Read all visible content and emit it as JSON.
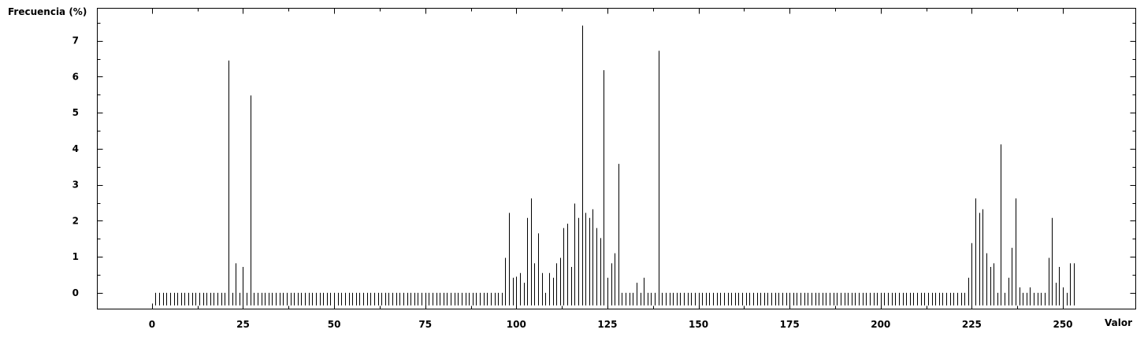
{
  "chart_data": {
    "type": "bar",
    "title": "",
    "xlabel": "Valor",
    "ylabel": "Frecuencia (%)",
    "xlim": [
      -15,
      270
    ],
    "ylim": [
      -0.45,
      7.9
    ],
    "xticks": [
      0,
      25,
      50,
      75,
      100,
      125,
      150,
      175,
      200,
      225,
      250
    ],
    "yticks": [
      0,
      1,
      2,
      3,
      4,
      5,
      6,
      7
    ],
    "grid": false,
    "legend": "none",
    "series": [
      {
        "values": [
          -0.35,
          0,
          0,
          0,
          0,
          0,
          0,
          0,
          0,
          0,
          0,
          0,
          0,
          0,
          0,
          0,
          0,
          0,
          0,
          0,
          0,
          6.45,
          0,
          0.82,
          0,
          0.72,
          0,
          5.48,
          0,
          0,
          0,
          0,
          0,
          0,
          0,
          0,
          0,
          0,
          0,
          0,
          0,
          0,
          0,
          0,
          0,
          0,
          0,
          0,
          0,
          0,
          0,
          0,
          0,
          0,
          0,
          0,
          0,
          0,
          0,
          0,
          0,
          0,
          0,
          0,
          0,
          0,
          0,
          0,
          0,
          0,
          0,
          0,
          0,
          0,
          0,
          0,
          0,
          0,
          0,
          0,
          0,
          0,
          0,
          0,
          0,
          0,
          0,
          0,
          0,
          0,
          0,
          0,
          0,
          0,
          0,
          0,
          0,
          0.97,
          2.22,
          0.42,
          0.45,
          0.55,
          0.28,
          2.08,
          2.62,
          0.82,
          1.65,
          0.55,
          0,
          0.55,
          0.42,
          0.82,
          0.97,
          1.8,
          1.92,
          0.72,
          2.48,
          2.08,
          7.42,
          2.22,
          2.08,
          2.32,
          1.8,
          1.52,
          6.18,
          0.42,
          0.82,
          1.1,
          3.58,
          0,
          0,
          0,
          0,
          0.28,
          0,
          0.42,
          0,
          0,
          0,
          6.72,
          0,
          0,
          0,
          0,
          0,
          0,
          0,
          0,
          0,
          0,
          0,
          0,
          0,
          0,
          0,
          0,
          0,
          0,
          0,
          0,
          0,
          0,
          0,
          0,
          0,
          0,
          0,
          0,
          0,
          0,
          0,
          0,
          0,
          0,
          0,
          0,
          0,
          0,
          0,
          0,
          0,
          0,
          0,
          0,
          0,
          0,
          0,
          0,
          0,
          0,
          0,
          0,
          0,
          0,
          0,
          0,
          0,
          0,
          0,
          0,
          0,
          0,
          0,
          0,
          0,
          0,
          0,
          0,
          0,
          0,
          0,
          0,
          0,
          0,
          0,
          0,
          0,
          0,
          0,
          0,
          0,
          0,
          0,
          0,
          0.42,
          1.38,
          2.62,
          2.22,
          2.32,
          1.1,
          0.72,
          0.82,
          0,
          4.12,
          0,
          0.42,
          1.25,
          2.62,
          0.15,
          0,
          0,
          0.15,
          0,
          0,
          0,
          0,
          0.97,
          2.08,
          0.28,
          0.72,
          0.15,
          0,
          0.82,
          0.82
        ]
      }
    ]
  }
}
